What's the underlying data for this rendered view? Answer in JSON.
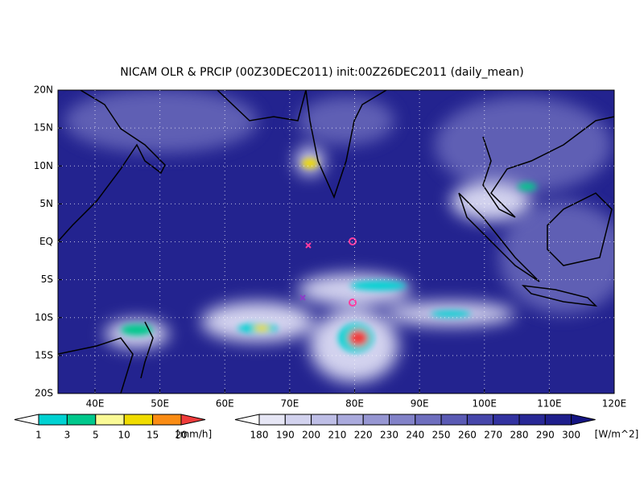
{
  "map": {
    "title": "NICAM OLR & PRCIP (00Z30DEC2011) init:00Z26DEC2011 (daily_mean)",
    "lat_labels": [
      "20N",
      "15N",
      "10N",
      "5N",
      "EQ",
      "5S",
      "10S",
      "15S",
      "20S"
    ],
    "lon_labels": [
      "40E",
      "50E",
      "60E",
      "70E",
      "80E",
      "90E",
      "100E",
      "110E",
      "120E"
    ],
    "precip_colorbar": {
      "ticks": [
        1,
        3,
        5,
        10,
        15,
        20
      ],
      "unit": "[mm/h]",
      "colors": [
        "#ffffff",
        "#00d2d2",
        "#00c88c",
        "#fafa96",
        "#f0dc00",
        "#fa8c14",
        "#f03c3c"
      ]
    },
    "olr_colorbar": {
      "ticks": [
        180,
        190,
        200,
        210,
        220,
        230,
        240,
        250,
        260,
        270,
        280,
        290,
        300
      ],
      "unit": "[W/m^2]",
      "colors": [
        "#ffffff",
        "#e6e6f5",
        "#d2d2ee",
        "#bebee6",
        "#aaaadd",
        "#9696d2",
        "#8282c8",
        "#6e6ebe",
        "#5a5ab4",
        "#4646aa",
        "#3232a0",
        "#282896",
        "#1e1e8c",
        "#141482"
      ]
    }
  }
}
